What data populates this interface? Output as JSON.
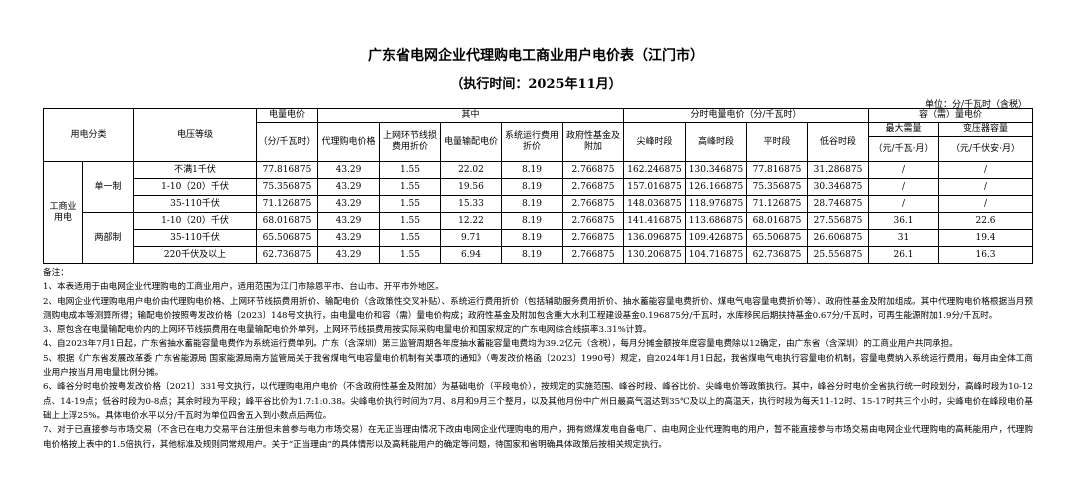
{
  "title": "广东省电网企业代理购电工商业用户电价表（江门市）",
  "subtitle": "（执行时间：2025年11月）",
  "unit": "单位：分/千瓦时（含税）",
  "headers": {
    "category": "用电分类",
    "voltage": "电压等级",
    "energy_price": "电量电价",
    "energy_price_unit": "（分/千瓦时）",
    "of_which": "其中",
    "proxy_price": "代理购电价格",
    "loss_price": "上网环节线损费用折价",
    "transmission": "电量输配电价",
    "system_cost": "系统运行费用折价",
    "gov_fund": "政府性基金及附加",
    "tou": "分时电量电价（分/千瓦时）",
    "peak_top": "尖峰时段",
    "peak": "高峰时段",
    "flat": "平时段",
    "valley": "低谷时段",
    "capacity": "容（需）量电价",
    "max_demand": "最大需量",
    "max_demand_unit": "（元/千瓦·月）",
    "transformer": "变压器容量",
    "transformer_unit": "（元/千伏安·月）"
  },
  "category_label": "工商业用电",
  "groups": [
    {
      "label": "单一制",
      "rows": [
        {
          "voltage": "不满1千伏",
          "energy": "77.816875",
          "proxy": "43.29",
          "loss": "1.55",
          "trans": "22.02",
          "sys": "8.19",
          "fund": "2.766875",
          "peak_top": "162.246875",
          "peak": "130.346875",
          "flat": "77.816875",
          "valley": "31.286875",
          "demand": "/",
          "transformer": "/"
        },
        {
          "voltage": "1-10（20）千伏",
          "energy": "75.356875",
          "proxy": "43.29",
          "loss": "1.55",
          "trans": "19.56",
          "sys": "8.19",
          "fund": "2.766875",
          "peak_top": "157.016875",
          "peak": "126.166875",
          "flat": "75.356875",
          "valley": "30.346875",
          "demand": "/",
          "transformer": "/"
        },
        {
          "voltage": "35-110千伏",
          "energy": "71.126875",
          "proxy": "43.29",
          "loss": "1.55",
          "trans": "15.33",
          "sys": "8.19",
          "fund": "2.766875",
          "peak_top": "148.036875",
          "peak": "118.976875",
          "flat": "71.126875",
          "valley": "28.746875",
          "demand": "/",
          "transformer": "/"
        }
      ]
    },
    {
      "label": "两部制",
      "rows": [
        {
          "voltage": "1-10（20）千伏",
          "energy": "68.016875",
          "proxy": "43.29",
          "loss": "1.55",
          "trans": "12.22",
          "sys": "8.19",
          "fund": "2.766875",
          "peak_top": "141.416875",
          "peak": "113.686875",
          "flat": "68.016875",
          "valley": "27.556875",
          "demand": "36.1",
          "transformer": "22.6"
        },
        {
          "voltage": "35-110千伏",
          "energy": "65.506875",
          "proxy": "43.29",
          "loss": "1.55",
          "trans": "9.71",
          "sys": "8.19",
          "fund": "2.766875",
          "peak_top": "136.096875",
          "peak": "109.426875",
          "flat": "65.506875",
          "valley": "26.606875",
          "demand": "31",
          "transformer": "19.4"
        },
        {
          "voltage": "220千伏及以上",
          "energy": "62.736875",
          "proxy": "43.29",
          "loss": "1.55",
          "trans": "6.94",
          "sys": "8.19",
          "fund": "2.766875",
          "peak_top": "130.206875",
          "peak": "104.716875",
          "flat": "62.736875",
          "valley": "25.556875",
          "demand": "26.1",
          "transformer": "16.3"
        }
      ]
    }
  ],
  "notes": {
    "heading": "备注：",
    "items": [
      "1、本表适用于由电网企业代理购电的工商业用户，适用范围为江门市除恩平市、台山市、开平市外地区。",
      "2、电网企业代理购电用户电价由代理购电价格、上网环节线损费用折价、输配电价（含政策性交叉补贴）、系统运行费用折价（包括辅助服务费用折价、抽水蓄能容量电费折价、煤电气电容量电费折价等）、政府性基金及附加组成。其中代理购电价格根据当月预测购电成本等测算所得；输配电价按照粤发改价格〔2023〕148号文执行，由电量电价和容（需）量电价构成；政府性基金及附加包含重大水利工程建设基金0.196875分/千瓦时，水库移民后期扶持基金0.67分/千瓦时，可再生能源附加1.9分/千瓦时。",
      "3、原包含在电量输配电价内的上网环节线损费用在电量输配电价外单列，上网环节线损费用按实际采购电量电价和国家规定的广东电网综合线损率3.31%计算。",
      "4、自2023年7月1日起，广东省抽水蓄能容量电费作为系统运行费单列。广东（含深圳）第三监管周期各年度抽水蓄能容量电费均为39.2亿元（含税），每月分摊金额按年度容量电费除以12确定，由广东省（含深圳）的工商业用户共同承担。",
      "5、根据《广东省发展改革委 广东省能源局 国家能源局南方监管局关于我省煤电气电容量电价机制有关事项的通知》（粤发改价格函〔2023〕1990号）规定，自2024年1月1日起，我省煤电气电执行容量电价机制，容量电费纳入系统运行费用，每月由全体工商业用户按当月用电量比例分摊。",
      "6、峰谷分时电价按粤发改价格〔2021〕331号文执行，以代理购电用户电价（不含政府性基金及附加）为基础电价（平段电价），按规定的实施范围、峰谷时段、峰谷比价、尖峰电价等政策执行。其中，峰谷分时电价全省执行统一时段划分，高峰时段为10-12点、14-19点；低谷时段为0-8点；其余时段为平段；峰平谷比价为1.7:1:0.38。尖峰电价执行时间为7月、8月和9月三个整月，以及其他月份中广州日最高气温达到35℃及以上的高温天，执行时段为每天11-12时、15-17时共三个小时，尖峰电价在峰段电价基础上上浮25%。具体电价水平以分/千瓦时为单位四舍五入到小数点后两位。",
      "7、对于已直接参与市场交易（不含已在电力交易平台注册但未曾参与电力市场交易）在无正当理由情况下改由电网企业代理购电的用户，拥有燃煤发电自备电厂、由电网企业代理购电的用户，暂不能直接参与市场交易由电网企业代理购电的高耗能用户，代理购电价格按上表中的1.5倍执行，其他标准及规则同常规用户。关于“正当理由”的具体情形以及高耗能用户的确定等问题，待国家和省明确具体政策后按相关规定执行。"
    ]
  }
}
